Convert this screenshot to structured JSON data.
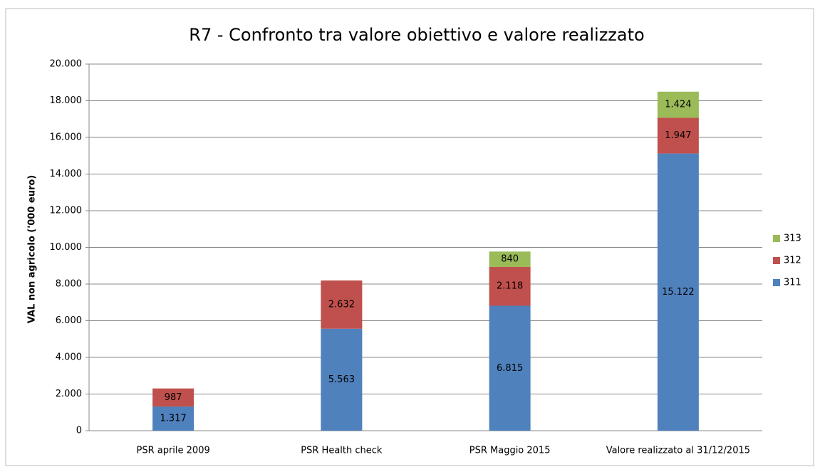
{
  "chart_data": {
    "type": "stacked_bar",
    "title": "R7 - Confronto tra valore obiettivo e valore realizzato",
    "y_label": "VAL non agricolo ('000 euro)",
    "categories": [
      "PSR aprile 2009",
      "PSR Health check",
      "PSR Maggio 2015",
      "Valore realizzato al 31/12/2015"
    ],
    "series": [
      {
        "name": "311",
        "color": "#4f81bd",
        "values": [
          1317,
          5563,
          6815,
          15122
        ],
        "value_labels": [
          "1.317",
          "5.563",
          "6.815",
          "15.122"
        ]
      },
      {
        "name": "312",
        "color": "#c0504d",
        "values": [
          987,
          2632,
          2118,
          1947
        ],
        "value_labels": [
          "987",
          "2.632",
          "2.118",
          "1.947"
        ]
      },
      {
        "name": "313",
        "color": "#9bbb59",
        "values": [
          null,
          null,
          840,
          1424
        ],
        "value_labels": [
          null,
          null,
          "840",
          "1.424"
        ]
      }
    ],
    "ylim": [
      0,
      20000
    ],
    "yticks": [
      0,
      {
        "value": 2000,
        "label": "2.000"
      },
      {
        "value": 4000,
        "label": "4.000"
      },
      {
        "value": 6000,
        "label": "6.000"
      },
      {
        "value": 8000,
        "label": "8.000"
      },
      {
        "value": 10000,
        "label": "10.000"
      },
      {
        "value": 12000,
        "label": "12.000"
      },
      {
        "value": 14000,
        "label": "14.000"
      },
      {
        "value": 16000,
        "label": "16.000"
      },
      {
        "value": 18000,
        "label": "18.000"
      },
      {
        "value": 20000,
        "label": "20.000"
      }
    ],
    "grid": true,
    "legend": "right"
  }
}
